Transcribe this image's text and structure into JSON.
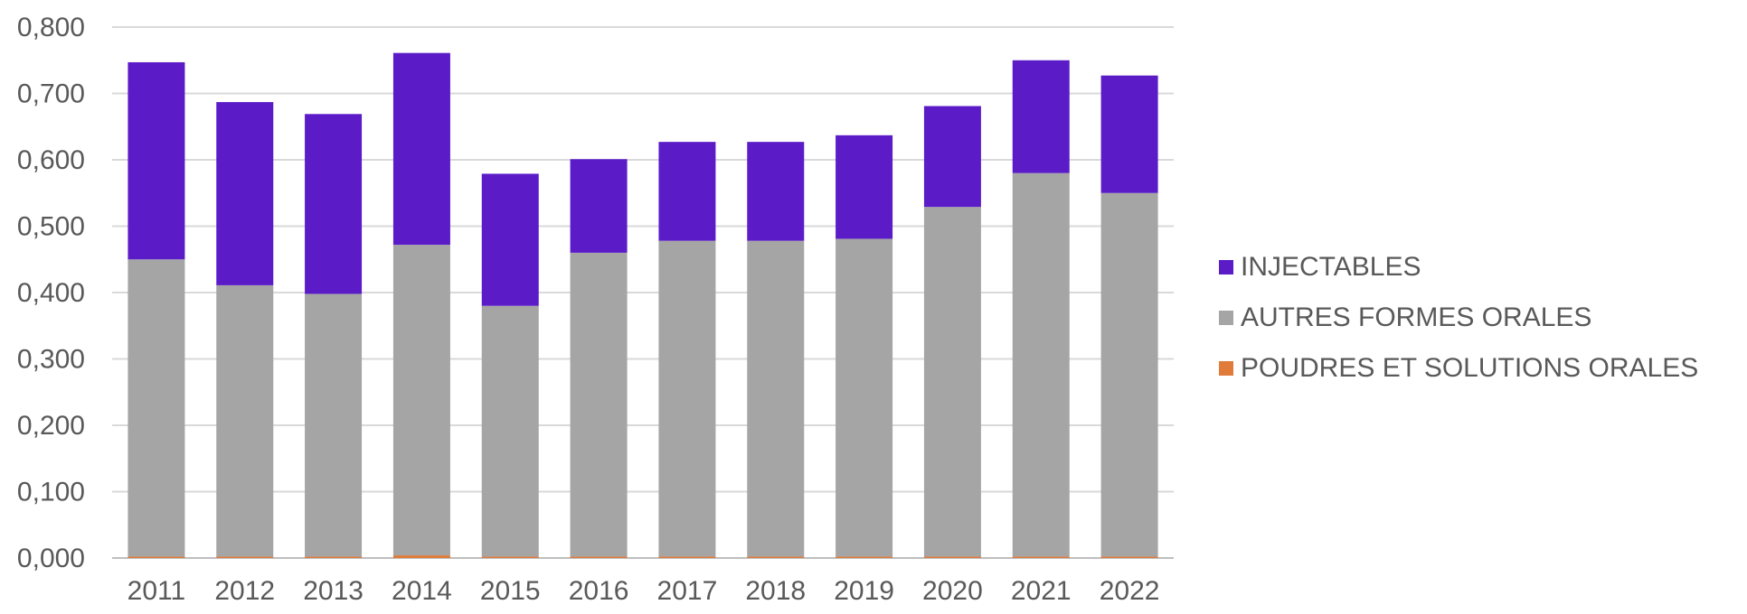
{
  "chart_data": {
    "type": "bar",
    "stacked": true,
    "categories": [
      "2011",
      "2012",
      "2013",
      "2014",
      "2015",
      "2016",
      "2017",
      "2018",
      "2019",
      "2020",
      "2021",
      "2022"
    ],
    "series": [
      {
        "name": "POUDRES ET SOLUTIONS ORALES",
        "color": "#E07B39",
        "values": [
          0.002,
          0.002,
          0.002,
          0.004,
          0.002,
          0.002,
          0.002,
          0.002,
          0.002,
          0.002,
          0.002,
          0.002
        ]
      },
      {
        "name": "AUTRES FORMES ORALES",
        "color": "#A5A5A5",
        "values": [
          0.448,
          0.409,
          0.396,
          0.468,
          0.378,
          0.458,
          0.476,
          0.476,
          0.479,
          0.527,
          0.578,
          0.548
        ]
      },
      {
        "name": "INJECTABLES",
        "color": "#5B1CC8",
        "values": [
          0.297,
          0.276,
          0.271,
          0.289,
          0.199,
          0.141,
          0.149,
          0.149,
          0.156,
          0.152,
          0.17,
          0.177
        ]
      }
    ],
    "ylim": [
      0,
      0.8
    ],
    "yticks": [
      "0,000",
      "0,100",
      "0,200",
      "0,300",
      "0,400",
      "0,500",
      "0,600",
      "0,700",
      "0,800"
    ],
    "grid": true,
    "legend_position": "right"
  },
  "legend": [
    {
      "label": "INJECTABLES",
      "color": "#5B1CC8"
    },
    {
      "label": "AUTRES FORMES ORALES",
      "color": "#A5A5A5"
    },
    {
      "label": "POUDRES ET SOLUTIONS ORALES",
      "color": "#E07B39"
    }
  ]
}
